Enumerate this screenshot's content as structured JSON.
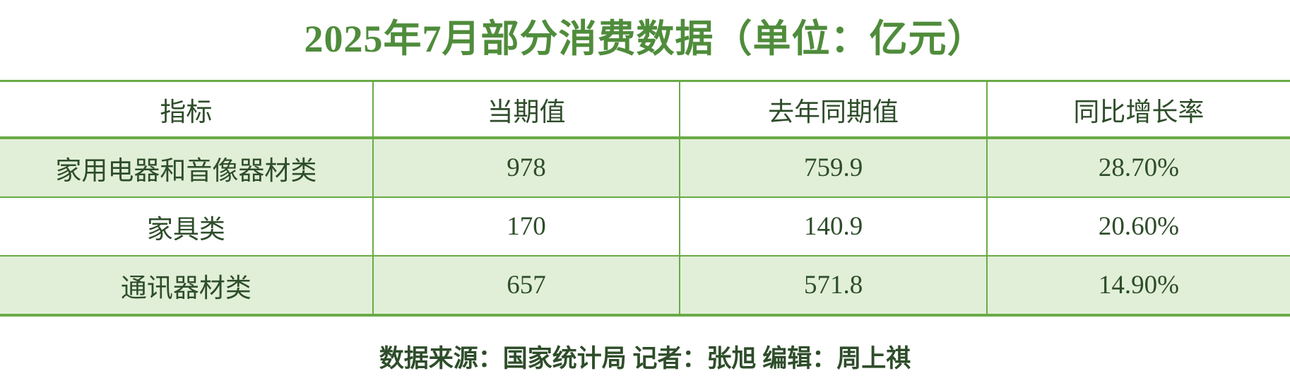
{
  "title": "2025年7月部分消费数据（单位：亿元）",
  "table": {
    "headers": [
      "指标",
      "当期值",
      "去年同期值",
      "同比增长率"
    ],
    "rows": [
      {
        "cells": [
          "家用电器和音像器材类",
          "978",
          "759.9",
          "28.70%"
        ]
      },
      {
        "cells": [
          "家具类",
          "170",
          "140.9",
          "20.60%"
        ]
      },
      {
        "cells": [
          "通讯器材类",
          "657",
          "571.8",
          "14.90%"
        ]
      }
    ]
  },
  "footer": {
    "text": "数据来源：国家统计局 记者：张旭 编辑：周上祺"
  },
  "colors": {
    "title_green": "#4f8c3b",
    "border_green": "#6aaa47",
    "row_alt_bg": "#e1efd8",
    "text_dark_green": "#2e4d2a",
    "background": "#ffffff"
  },
  "chart_data": {
    "type": "table",
    "title": "2025年7月部分消费数据（单位：亿元）",
    "unit": "亿元",
    "columns": [
      "指标",
      "当期值",
      "去年同期值",
      "同比增长率"
    ],
    "rows": [
      [
        "家用电器和音像器材类",
        978,
        759.9,
        "28.70%"
      ],
      [
        "家具类",
        170,
        140.9,
        "20.60%"
      ],
      [
        "通讯器材类",
        657,
        571.8,
        "14.90%"
      ]
    ],
    "row_striping": "alternating light-green/white starting light-green",
    "source_note": "数据来源：国家统计局 记者：张旭 编辑：周上祺"
  }
}
